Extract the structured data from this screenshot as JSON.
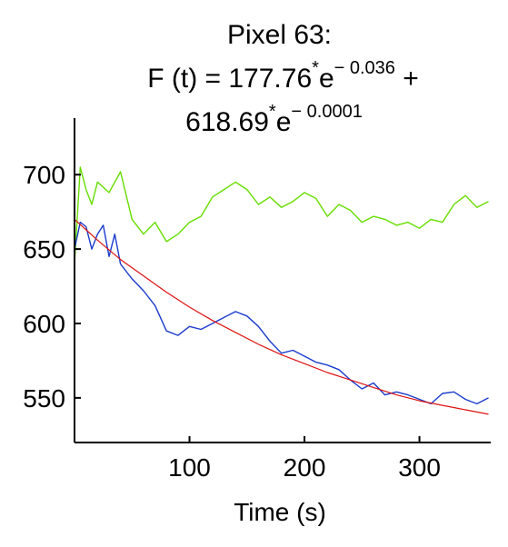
{
  "title": {
    "line1": "Pixel 63:",
    "line2_prefix": "F (t)  =  177.76",
    "line2_star": "*",
    "line2_e": "e",
    "line2_exp": "− 0.036",
    "line2_suffix": " +",
    "line3_prefix": "618.69",
    "line3_star": "*",
    "line3_e": "e",
    "line3_exp": "− 0.0001"
  },
  "chart_data": {
    "type": "line",
    "title": "Pixel 63: F (t) = 177.76*e− 0.036 + 618.69*e− 0.0001",
    "xlabel": "Time (s)",
    "ylabel": "",
    "xlim": [
      0,
      362
    ],
    "ylim": [
      520,
      738
    ],
    "xticks": [
      100,
      200,
      300
    ],
    "yticks": [
      550,
      600,
      650,
      700
    ],
    "grid": false,
    "series": [
      {
        "color": "#66dd00",
        "x": [
          0,
          5,
          10,
          15,
          20,
          30,
          40,
          50,
          60,
          70,
          80,
          90,
          100,
          110,
          120,
          130,
          140,
          150,
          160,
          170,
          180,
          190,
          200,
          210,
          220,
          230,
          240,
          250,
          260,
          270,
          280,
          290,
          300,
          310,
          320,
          330,
          340,
          350,
          360
        ],
        "values": [
          640,
          705,
          690,
          680,
          695,
          688,
          702,
          670,
          660,
          668,
          655,
          660,
          668,
          672,
          685,
          690,
          695,
          690,
          680,
          685,
          678,
          682,
          688,
          684,
          672,
          680,
          676,
          668,
          672,
          670,
          666,
          668,
          664,
          670,
          668,
          680,
          686,
          678,
          682
        ]
      },
      {
        "color": "#1a3ccc",
        "x": [
          0,
          5,
          10,
          15,
          20,
          25,
          30,
          35,
          40,
          50,
          60,
          70,
          80,
          90,
          100,
          110,
          120,
          130,
          140,
          150,
          160,
          170,
          180,
          190,
          200,
          210,
          220,
          230,
          240,
          250,
          260,
          270,
          280,
          290,
          300,
          310,
          320,
          330,
          340,
          350,
          360
        ],
        "values": [
          650,
          668,
          665,
          650,
          660,
          666,
          645,
          660,
          640,
          630,
          622,
          612,
          595,
          592,
          598,
          596,
          600,
          604,
          608,
          605,
          598,
          588,
          580,
          582,
          578,
          574,
          572,
          569,
          562,
          556,
          560,
          552,
          554,
          552,
          549,
          546,
          553,
          554,
          549,
          546,
          550
        ]
      },
      {
        "color": "#dd1111",
        "equation": "177.76*e^(-0.036*(t... fitted decay)",
        "x": [
          0,
          20,
          40,
          60,
          80,
          100,
          120,
          140,
          160,
          180,
          200,
          220,
          240,
          260,
          280,
          300,
          320,
          340,
          360
        ],
        "values": [
          670,
          656,
          643,
          632,
          621,
          611,
          602,
          594,
          586,
          579,
          573,
          567,
          562,
          557,
          552,
          548,
          545,
          542,
          539
        ]
      }
    ]
  }
}
